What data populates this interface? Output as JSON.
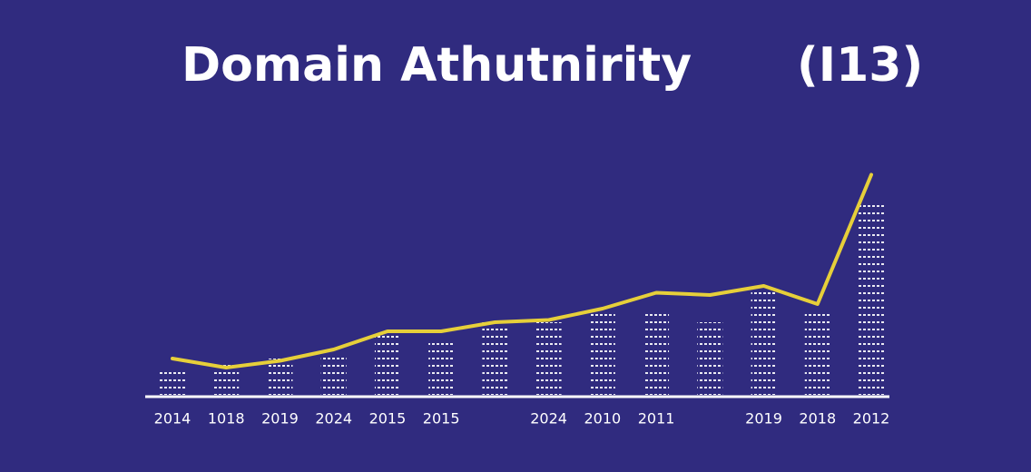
{
  "chart_data": {
    "type": "line",
    "title": "Domain Athutnirity",
    "subtitle": "(I13)",
    "categories": [
      "2014",
      "1018",
      "2019",
      "2024",
      "2015",
      "2015",
      null,
      "2024",
      "2010",
      "2011",
      null,
      "2019",
      "2018",
      "2012"
    ],
    "series": [
      {
        "kind": "bar",
        "color": "#ffffff",
        "values": [
          10,
          14,
          16,
          18,
          28,
          24,
          32,
          32,
          36,
          38,
          32,
          46,
          38,
          84
        ]
      },
      {
        "kind": "line",
        "color": "#e6cf3a",
        "values": [
          16,
          12,
          15,
          20,
          28,
          28,
          32,
          33,
          38,
          45,
          44,
          48,
          40,
          97
        ]
      }
    ],
    "ylim": [
      0,
      100
    ],
    "background": "#302b7f"
  }
}
